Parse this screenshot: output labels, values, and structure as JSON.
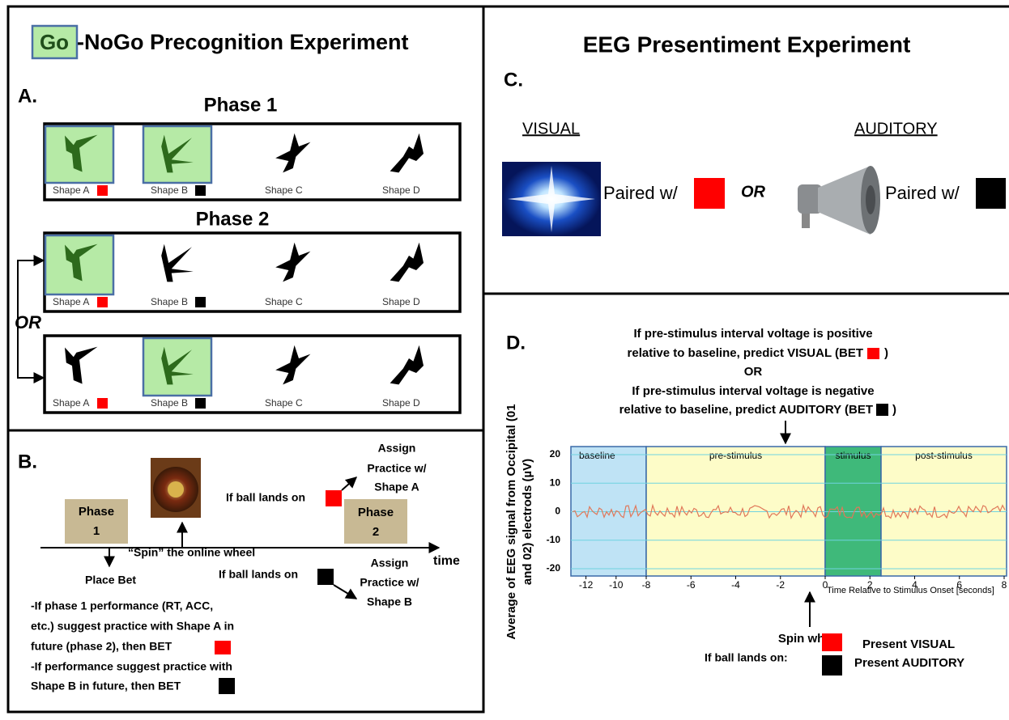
{
  "panel_a": {
    "label": "A.",
    "title_go": "Go",
    "title_rest": "-NoGo Precognition Experiment",
    "phase1": "Phase 1",
    "phase2": "Phase 2",
    "or": "OR",
    "shapes": [
      "Shape A",
      "Shape B",
      "Shape C",
      "Shape D"
    ]
  },
  "panel_b": {
    "label": "B.",
    "phase1": [
      "Phase",
      "1"
    ],
    "phase2": [
      "Phase",
      "2"
    ],
    "spin": "“Spin” the online wheel",
    "place_bet": "Place Bet",
    "time": "time",
    "if_red": "If ball lands on",
    "assign_a": [
      "Assign",
      "Practice w/",
      "Shape A"
    ],
    "if_black": "If ball lands on",
    "assign_b": [
      "Assign",
      "Practice w/",
      "Shape B"
    ],
    "bullet1": [
      "-If phase 1 performance (RT, ACC,",
      "etc.) suggest practice with Shape A in",
      "future (phase 2), then BET"
    ],
    "bullet2": [
      "-If performance suggest practice with",
      "Shape B in future, then BET"
    ]
  },
  "panel_c": {
    "title": "EEG Presentiment Experiment",
    "label": "C.",
    "visual": "VISUAL",
    "auditory": "AUDITORY",
    "paired_visual": "Paired w/",
    "or": "OR",
    "paired_auditory": "Paired w/"
  },
  "panel_d": {
    "label": "D.",
    "rule": [
      "If pre-stimulus interval voltage is positive",
      "relative to baseline, predict VISUAL (BET",
      ")",
      "OR",
      "If pre-stimulus interval voltage is negative",
      "relative to baseline, predict AUDITORY (BET",
      ")"
    ],
    "ylabel": [
      "Average of EEG signal  from Occipital (01",
      "and 02) electrods (µV)"
    ],
    "regions": [
      "baseline",
      "pre-stimulus",
      "stimulus",
      "post-stimulus"
    ],
    "yticks": [
      20,
      10,
      0,
      -10,
      -20
    ],
    "xticks": [
      -12,
      -10,
      -8,
      -6,
      -4,
      -2,
      0,
      2,
      4,
      6,
      8
    ],
    "xlabel": "Time Relative to Stimulus Onset [seconds]",
    "spin": "Spin wheel",
    "legend_intro": "If ball lands on:",
    "legend": [
      "Present VISUAL",
      "Present AUDITORY"
    ]
  }
}
